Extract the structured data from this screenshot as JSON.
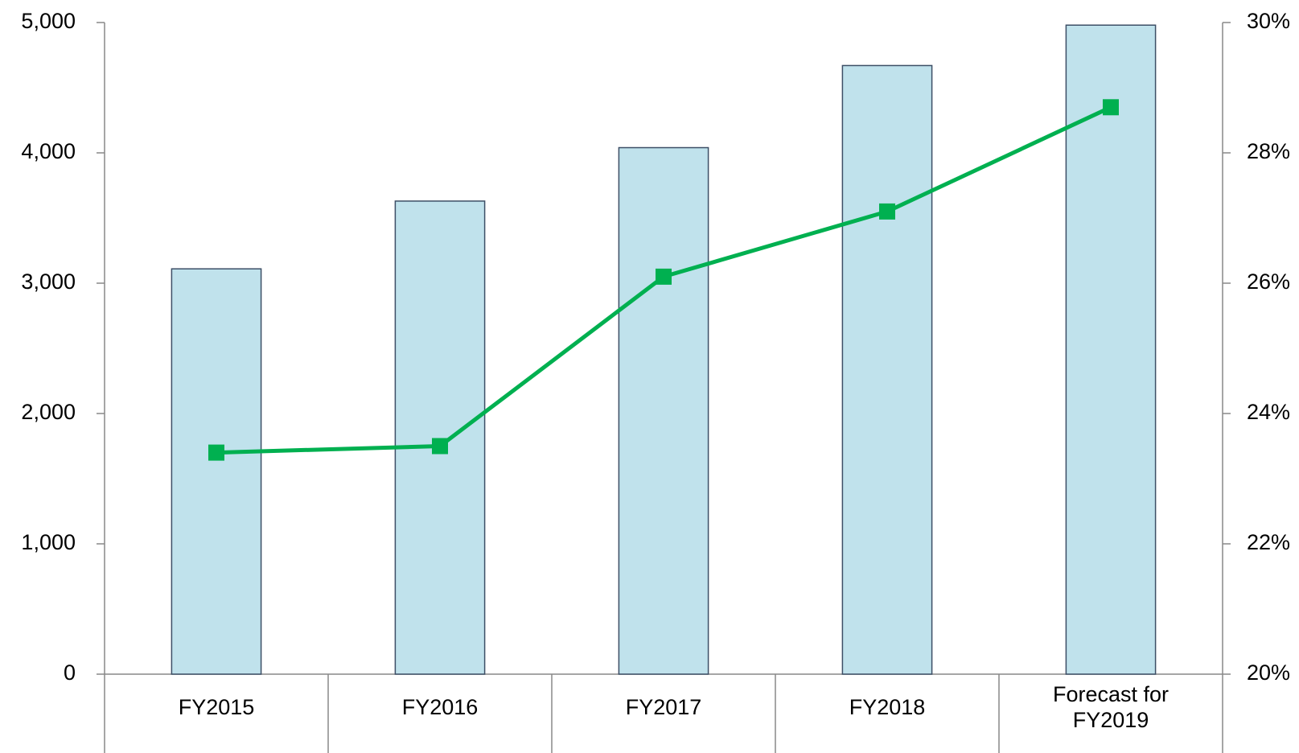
{
  "chart_data": {
    "type": "bar_line",
    "categories": [
      "FY2015",
      "FY2016",
      "FY2017",
      "FY2018",
      "Forecast for FY2019"
    ],
    "series": [
      {
        "type": "bar",
        "color": "#c0e2ec",
        "values": [
          3110,
          3630,
          4040,
          4670,
          4980
        ]
      },
      {
        "type": "line",
        "color": "#00b050",
        "axis": "y2",
        "values": [
          23.4,
          23.5,
          26.1,
          27.1,
          28.7
        ]
      }
    ],
    "ylim": [
      0,
      5000
    ],
    "yticks": [
      0,
      {
        "value": 1000,
        "label": "1,000"
      },
      {
        "value": 2000,
        "label": "2,000"
      },
      {
        "value": 3000,
        "label": "3,000"
      },
      {
        "value": 4000,
        "label": "4,000"
      },
      {
        "value": 5000,
        "label": "5,000"
      }
    ],
    "y2lim": [
      20,
      30
    ],
    "y2ticks": [
      {
        "value": 20,
        "label": "20%"
      },
      {
        "value": 22,
        "label": "22%"
      },
      {
        "value": 24,
        "label": "24%"
      },
      {
        "value": 26,
        "label": "26%"
      },
      {
        "value": 28,
        "label": "28%"
      },
      {
        "value": 30,
        "label": "30%"
      }
    ],
    "grid": false
  }
}
